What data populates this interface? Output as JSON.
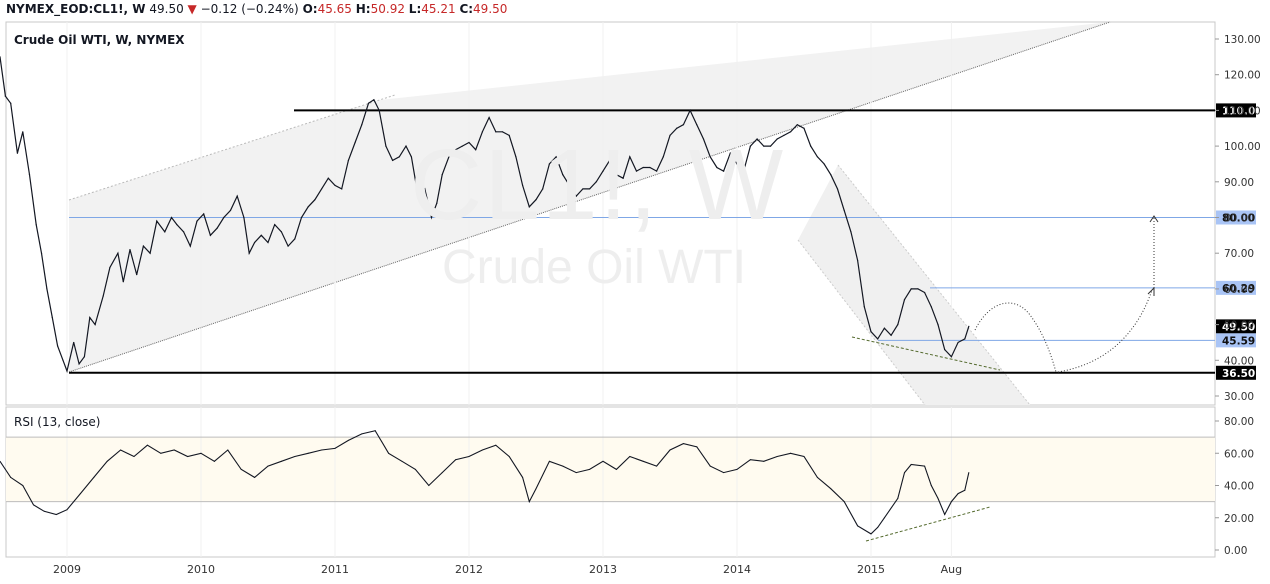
{
  "header": {
    "symbol": "NYMEX_EOD:CL1!, W",
    "last": "49.50",
    "change": "−0.12 (−0.24%)",
    "o_label": "O:",
    "o": "45.65",
    "h_label": "H:",
    "h": "50.92",
    "l_label": "L:",
    "l": "45.21",
    "c_label": "C:",
    "c": "49.50",
    "arrow": "▼"
  },
  "title": "Crude Oil WTI, W, NYMEX",
  "watermark": {
    "line1": "CL1!, W",
    "line2": "Crude Oil WTI"
  },
  "rsi_title": "RSI (13, close)",
  "colors": {
    "price": "#131722",
    "badge": "#a9c4f5",
    "badge_dark": "#000000",
    "hline_blue": "#7fa7e6",
    "channel": "#f2f2f2",
    "rsi_band": "#fffbf0"
  },
  "chart_data": [
    {
      "type": "line",
      "name": "price",
      "x_dates": [
        "2009",
        "2010",
        "2011",
        "2012",
        "2013",
        "2014",
        "2015",
        "Aug"
      ],
      "ylim": [
        25,
        135
      ],
      "y_ticks": [
        "30.00",
        "40.00",
        "50.00",
        "60.00",
        "70.00",
        "80.00",
        "90.00",
        "100.00",
        "110.00",
        "120.00",
        "130.00"
      ],
      "x_tick_labels": [
        "2009",
        "2010",
        "2011",
        "2012",
        "2013",
        "2014",
        "2015",
        "Aug"
      ],
      "series": [
        {
          "values": [
            [
              2008.5,
              125
            ],
            [
              2008.54,
              114
            ],
            [
              2008.58,
              112
            ],
            [
              2008.63,
              98
            ],
            [
              2008.67,
              104
            ],
            [
              2008.72,
              92
            ],
            [
              2008.77,
              78
            ],
            [
              2008.81,
              70
            ],
            [
              2008.85,
              60
            ],
            [
              2008.89,
              52
            ],
            [
              2008.93,
              44
            ],
            [
              2008.97,
              40
            ],
            [
              2009.0,
              37
            ],
            [
              2009.05,
              45
            ],
            [
              2009.09,
              39
            ],
            [
              2009.13,
              41
            ],
            [
              2009.17,
              52
            ],
            [
              2009.21,
              50
            ],
            [
              2009.27,
              58
            ],
            [
              2009.32,
              66
            ],
            [
              2009.38,
              70
            ],
            [
              2009.42,
              62
            ],
            [
              2009.47,
              71
            ],
            [
              2009.52,
              64
            ],
            [
              2009.57,
              72
            ],
            [
              2009.62,
              70
            ],
            [
              2009.67,
              79
            ],
            [
              2009.73,
              76
            ],
            [
              2009.78,
              80
            ],
            [
              2009.82,
              78
            ],
            [
              2009.87,
              76
            ],
            [
              2009.92,
              72
            ],
            [
              2009.97,
              79
            ],
            [
              2010.02,
              81
            ],
            [
              2010.07,
              75
            ],
            [
              2010.12,
              77
            ],
            [
              2010.17,
              80
            ],
            [
              2010.22,
              82
            ],
            [
              2010.27,
              86
            ],
            [
              2010.32,
              80
            ],
            [
              2010.36,
              70
            ],
            [
              2010.4,
              73
            ],
            [
              2010.45,
              75
            ],
            [
              2010.5,
              73
            ],
            [
              2010.55,
              78
            ],
            [
              2010.6,
              76
            ],
            [
              2010.65,
              72
            ],
            [
              2010.7,
              74
            ],
            [
              2010.75,
              80
            ],
            [
              2010.8,
              83
            ],
            [
              2010.85,
              85
            ],
            [
              2010.9,
              88
            ],
            [
              2010.95,
              91
            ],
            [
              2011.0,
              89
            ],
            [
              2011.05,
              88
            ],
            [
              2011.1,
              96
            ],
            [
              2011.15,
              101
            ],
            [
              2011.2,
              106
            ],
            [
              2011.25,
              112
            ],
            [
              2011.29,
              113
            ],
            [
              2011.33,
              110
            ],
            [
              2011.38,
              100
            ],
            [
              2011.43,
              96
            ],
            [
              2011.48,
              97
            ],
            [
              2011.53,
              100
            ],
            [
              2011.57,
              97
            ],
            [
              2011.62,
              86
            ],
            [
              2011.67,
              88
            ],
            [
              2011.72,
              80
            ],
            [
              2011.76,
              84
            ],
            [
              2011.8,
              92
            ],
            [
              2011.85,
              97
            ],
            [
              2011.9,
              99
            ],
            [
              2011.95,
              100
            ],
            [
              2012.0,
              101
            ],
            [
              2012.05,
              99
            ],
            [
              2012.1,
              104
            ],
            [
              2012.15,
              108
            ],
            [
              2012.2,
              104
            ],
            [
              2012.25,
              104
            ],
            [
              2012.3,
              103
            ],
            [
              2012.35,
              97
            ],
            [
              2012.4,
              89
            ],
            [
              2012.45,
              83
            ],
            [
              2012.5,
              85
            ],
            [
              2012.55,
              88
            ],
            [
              2012.6,
              95
            ],
            [
              2012.65,
              97
            ],
            [
              2012.7,
              92
            ],
            [
              2012.75,
              89
            ],
            [
              2012.8,
              86
            ],
            [
              2012.85,
              88
            ],
            [
              2012.9,
              88
            ],
            [
              2012.95,
              90
            ],
            [
              2013.0,
              93
            ],
            [
              2013.05,
              96
            ],
            [
              2013.1,
              92
            ],
            [
              2013.15,
              91
            ],
            [
              2013.2,
              97
            ],
            [
              2013.25,
              93
            ],
            [
              2013.3,
              94
            ],
            [
              2013.35,
              94
            ],
            [
              2013.4,
              93
            ],
            [
              2013.45,
              97
            ],
            [
              2013.5,
              103
            ],
            [
              2013.55,
              105
            ],
            [
              2013.6,
              106
            ],
            [
              2013.65,
              110
            ],
            [
              2013.7,
              106
            ],
            [
              2013.75,
              102
            ],
            [
              2013.8,
              97
            ],
            [
              2013.85,
              94
            ],
            [
              2013.9,
              93
            ],
            [
              2013.95,
              98
            ],
            [
              2014.0,
              95
            ],
            [
              2014.05,
              93
            ],
            [
              2014.1,
              100
            ],
            [
              2014.15,
              102
            ],
            [
              2014.2,
              100
            ],
            [
              2014.25,
              100
            ],
            [
              2014.3,
              102
            ],
            [
              2014.35,
              103
            ],
            [
              2014.4,
              104
            ],
            [
              2014.45,
              106
            ],
            [
              2014.5,
              105
            ],
            [
              2014.55,
              100
            ],
            [
              2014.6,
              97
            ],
            [
              2014.65,
              95
            ],
            [
              2014.7,
              92
            ],
            [
              2014.75,
              88
            ],
            [
              2014.8,
              82
            ],
            [
              2014.85,
              76
            ],
            [
              2014.9,
              68
            ],
            [
              2014.95,
              55
            ],
            [
              2015.0,
              48
            ],
            [
              2015.05,
              46
            ],
            [
              2015.1,
              49
            ],
            [
              2015.15,
              47
            ],
            [
              2015.2,
              50
            ],
            [
              2015.25,
              57
            ],
            [
              2015.3,
              60
            ],
            [
              2015.35,
              60
            ],
            [
              2015.4,
              59
            ],
            [
              2015.45,
              55
            ],
            [
              2015.5,
              50
            ],
            [
              2015.55,
              43
            ],
            [
              2015.6,
              41
            ],
            [
              2015.65,
              45
            ],
            [
              2015.7,
              46
            ],
            [
              2015.73,
              49.5
            ]
          ]
        }
      ],
      "levels": [
        {
          "value": 110.0,
          "label": "110.00",
          "style": "black"
        },
        {
          "value": 80.0,
          "label": "80.00",
          "style": "blue"
        },
        {
          "value": 60.29,
          "label": "60.29",
          "style": "blue"
        },
        {
          "value": 49.5,
          "label": "49.50",
          "style": "last"
        },
        {
          "value": 45.59,
          "label": "45.59",
          "style": "blue"
        },
        {
          "value": 36.5,
          "label": "36.50",
          "style": "black"
        }
      ]
    },
    {
      "type": "line",
      "name": "rsi",
      "ylim": [
        -5,
        85
      ],
      "y_ticks": [
        "0.00",
        "20.00",
        "40.00",
        "60.00",
        "80.00"
      ],
      "bands": [
        30,
        70
      ],
      "series": [
        {
          "values": [
            [
              2008.5,
              55
            ],
            [
              2008.58,
              45
            ],
            [
              2008.67,
              40
            ],
            [
              2008.75,
              28
            ],
            [
              2008.83,
              24
            ],
            [
              2008.92,
              22
            ],
            [
              2009.0,
              25
            ],
            [
              2009.1,
              35
            ],
            [
              2009.2,
              45
            ],
            [
              2009.3,
              55
            ],
            [
              2009.4,
              62
            ],
            [
              2009.5,
              58
            ],
            [
              2009.6,
              65
            ],
            [
              2009.7,
              60
            ],
            [
              2009.8,
              62
            ],
            [
              2009.9,
              58
            ],
            [
              2010.0,
              60
            ],
            [
              2010.1,
              55
            ],
            [
              2010.2,
              62
            ],
            [
              2010.3,
              50
            ],
            [
              2010.4,
              45
            ],
            [
              2010.5,
              52
            ],
            [
              2010.6,
              55
            ],
            [
              2010.7,
              58
            ],
            [
              2010.8,
              60
            ],
            [
              2010.9,
              62
            ],
            [
              2011.0,
              63
            ],
            [
              2011.1,
              68
            ],
            [
              2011.2,
              72
            ],
            [
              2011.3,
              74
            ],
            [
              2011.4,
              60
            ],
            [
              2011.5,
              55
            ],
            [
              2011.6,
              50
            ],
            [
              2011.7,
              40
            ],
            [
              2011.8,
              48
            ],
            [
              2011.9,
              56
            ],
            [
              2012.0,
              58
            ],
            [
              2012.1,
              62
            ],
            [
              2012.2,
              65
            ],
            [
              2012.3,
              58
            ],
            [
              2012.4,
              45
            ],
            [
              2012.45,
              30
            ],
            [
              2012.5,
              38
            ],
            [
              2012.6,
              55
            ],
            [
              2012.7,
              52
            ],
            [
              2012.8,
              48
            ],
            [
              2012.9,
              50
            ],
            [
              2013.0,
              55
            ],
            [
              2013.1,
              50
            ],
            [
              2013.2,
              58
            ],
            [
              2013.3,
              55
            ],
            [
              2013.4,
              52
            ],
            [
              2013.5,
              62
            ],
            [
              2013.6,
              66
            ],
            [
              2013.7,
              64
            ],
            [
              2013.8,
              52
            ],
            [
              2013.9,
              48
            ],
            [
              2014.0,
              50
            ],
            [
              2014.1,
              56
            ],
            [
              2014.2,
              55
            ],
            [
              2014.3,
              58
            ],
            [
              2014.4,
              60
            ],
            [
              2014.5,
              58
            ],
            [
              2014.6,
              45
            ],
            [
              2014.7,
              38
            ],
            [
              2014.8,
              30
            ],
            [
              2014.9,
              15
            ],
            [
              2015.0,
              10
            ],
            [
              2015.05,
              14
            ],
            [
              2015.1,
              20
            ],
            [
              2015.2,
              32
            ],
            [
              2015.25,
              48
            ],
            [
              2015.3,
              53
            ],
            [
              2015.4,
              52
            ],
            [
              2015.45,
              40
            ],
            [
              2015.5,
              32
            ],
            [
              2015.55,
              22
            ],
            [
              2015.6,
              30
            ],
            [
              2015.65,
              35
            ],
            [
              2015.7,
              37
            ],
            [
              2015.73,
              48
            ]
          ]
        }
      ]
    }
  ]
}
